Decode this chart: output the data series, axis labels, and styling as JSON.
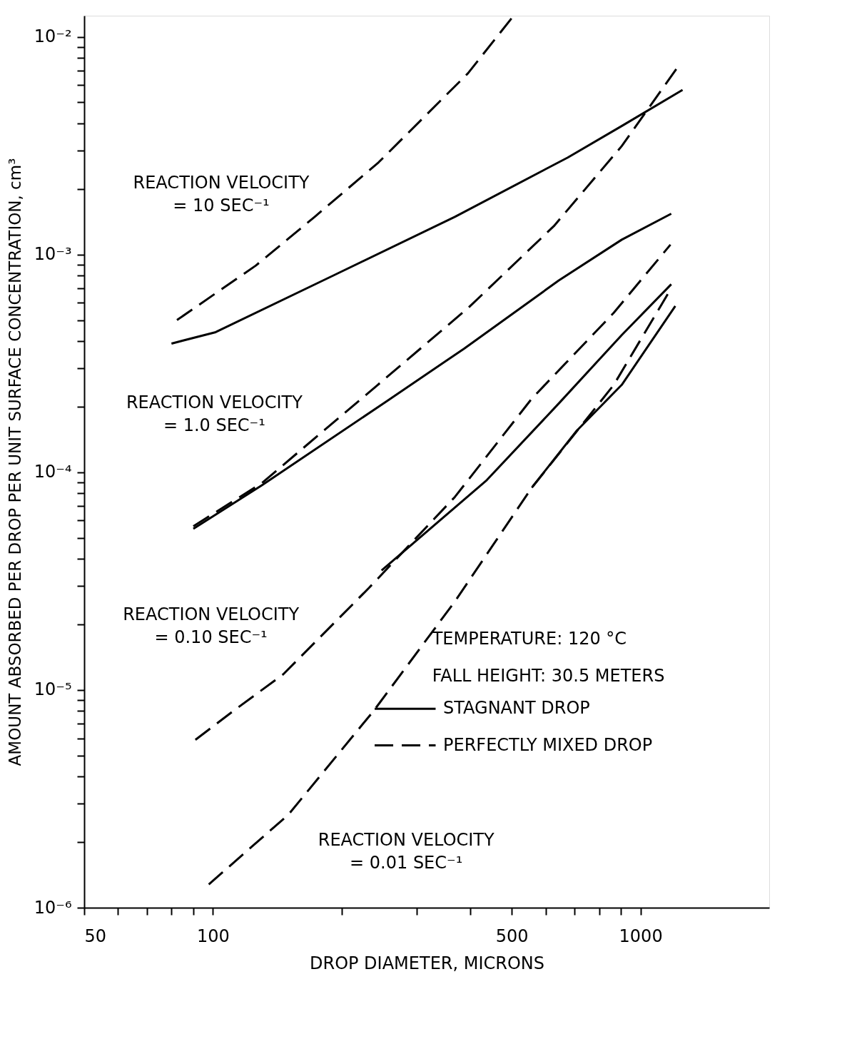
{
  "chart_data": {
    "type": "line",
    "xlabel": "DROP DIAMETER, MICRONS",
    "ylabel": "AMOUNT ABSORBED PER DROP PER UNIT SURFACE CONCENTRATION, cm³",
    "log": "xy",
    "grid": false,
    "legend": "bottom right",
    "marker": "none",
    "xlim": [
      50,
      2000
    ],
    "ylim": [
      1e-06,
      0.0125
    ],
    "xticks": [
      50,
      {
        "value": 60,
        "label": null
      },
      {
        "value": 70,
        "label": null
      },
      {
        "value": 80,
        "label": null
      },
      {
        "value": 90,
        "label": null
      },
      100,
      {
        "value": 200,
        "label": null
      },
      {
        "value": 300,
        "label": null
      },
      {
        "value": 400,
        "label": null
      },
      500,
      {
        "value": 600,
        "label": null
      },
      {
        "value": 700,
        "label": null
      },
      {
        "value": 800,
        "label": null
      },
      {
        "value": 900,
        "label": null
      },
      1000
    ],
    "yticks": [
      {
        "value": 1e-06,
        "label": "10⁻⁶"
      },
      {
        "value": 2e-06,
        "label": null
      },
      {
        "value": 3e-06,
        "label": null
      },
      {
        "value": 4e-06,
        "label": null
      },
      {
        "value": 5e-06,
        "label": null
      },
      {
        "value": 6e-06,
        "label": null
      },
      {
        "value": 7e-06,
        "label": null
      },
      {
        "value": 8e-06,
        "label": null
      },
      {
        "value": 9e-06,
        "label": null
      },
      {
        "value": 1e-05,
        "label": "10⁻⁵"
      },
      {
        "value": 2e-05,
        "label": null
      },
      {
        "value": 3e-05,
        "label": null
      },
      {
        "value": 4e-05,
        "label": null
      },
      {
        "value": 5e-05,
        "label": null
      },
      {
        "value": 6e-05,
        "label": null
      },
      {
        "value": 7e-05,
        "label": null
      },
      {
        "value": 8e-05,
        "label": null
      },
      {
        "value": 9e-05,
        "label": null
      },
      {
        "value": 0.0001,
        "label": "10⁻⁴"
      },
      {
        "value": 0.0002,
        "label": null
      },
      {
        "value": 0.0003,
        "label": null
      },
      {
        "value": 0.0004,
        "label": null
      },
      {
        "value": 0.0005,
        "label": null
      },
      {
        "value": 0.0006,
        "label": null
      },
      {
        "value": 0.0007,
        "label": null
      },
      {
        "value": 0.0008,
        "label": null
      },
      {
        "value": 0.0009,
        "label": null
      },
      {
        "value": 0.001,
        "label": "10⁻³"
      },
      {
        "value": 0.002,
        "label": null
      },
      {
        "value": 0.003,
        "label": null
      },
      {
        "value": 0.004,
        "label": null
      },
      {
        "value": 0.005,
        "label": null
      },
      {
        "value": 0.006,
        "label": null
      },
      {
        "value": 0.007,
        "label": null
      },
      {
        "value": 0.008,
        "label": null
      },
      {
        "value": 0.009,
        "label": null
      },
      {
        "value": 0.01,
        "label": "10⁻²"
      }
    ],
    "series": [
      {
        "name": "STAGNANT DROP",
        "line_style": "solid",
        "color": "#000000",
        "x": [
          80,
          101.5,
          191,
          368,
          676,
          905,
          1254
        ],
        "values": [
          0.00039,
          0.00044,
          0.0008,
          0.00149,
          0.00279,
          0.0039,
          0.0057
        ]
      },
      {
        "name": "PERFECTLY MIXED DROP",
        "line_style": "dashed",
        "color": "#000000",
        "x": [
          82.4,
          126,
          173,
          244,
          395,
          505
        ],
        "values": [
          0.0005,
          0.00089,
          0.00149,
          0.00265,
          0.0068,
          0.0125
        ]
      },
      {
        "line_style": "dashed",
        "color": "#000000",
        "x": [
          90,
          130,
          243,
          396,
          627,
          904,
          1236
        ],
        "values": [
          5.65e-05,
          8.9e-05,
          0.000252,
          0.00057,
          0.00135,
          0.00315,
          0.0075
        ]
      },
      {
        "line_style": "solid",
        "color": "#000000",
        "x": [
          90,
          130,
          255,
          387,
          644,
          904,
          1180
        ],
        "values": [
          5.5e-05,
          8.7e-05,
          0.000212,
          0.00037,
          0.00076,
          0.00117,
          0.00154
        ]
      },
      {
        "line_style": "dashed",
        "color": "#000000",
        "x": [
          91,
          112,
          146,
          232,
          368,
          557,
          866,
          1175
        ],
        "values": [
          5.9e-06,
          8.05e-06,
          1.18e-05,
          2.95e-05,
          7.7e-05,
          0.000218,
          0.00054,
          0.00111
        ]
      },
      {
        "line_style": "solid",
        "color": "#000000",
        "x": [
          248,
          437,
          644,
          904,
          1180
        ],
        "values": [
          3.54e-05,
          9.2e-05,
          0.000207,
          0.000427,
          0.00073
        ]
      },
      {
        "line_style": "dashed",
        "color": "#000000",
        "x": [
          97.8,
          150,
          238,
          368,
          557,
          866,
          1180
        ],
        "values": [
          1.28e-06,
          2.67e-06,
          8.05e-06,
          2.55e-05,
          8.5e-05,
          0.000252,
          0.0007
        ]
      },
      {
        "line_style": "solid",
        "color": "#000000",
        "x": [
          557,
          709,
          904,
          1206
        ],
        "values": [
          8.5e-05,
          0.000155,
          0.000252,
          0.00058
        ]
      }
    ],
    "annotations": [
      "REACTION VELOCITY\n= 10 SEC⁻¹",
      "REACTION VELOCITY\n= 1.0 SEC⁻¹",
      "REACTION VELOCITY\n= 0.10 SEC⁻¹",
      "REACTION VELOCITY\n= 0.01 SEC⁻¹",
      "TEMPERATURE:  120 °C",
      "FALL HEIGHT:  30.5 METERS"
    ]
  }
}
